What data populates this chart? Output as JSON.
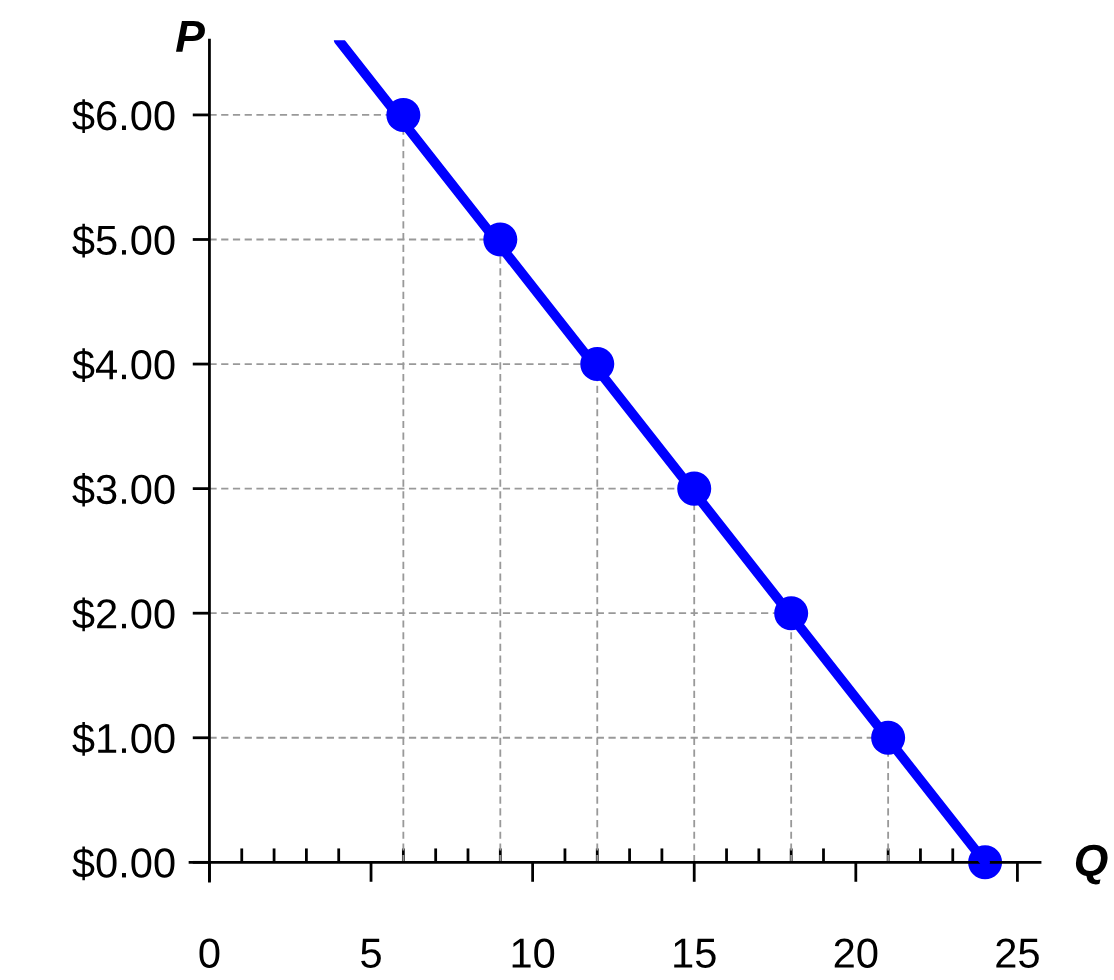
{
  "chart_data": {
    "type": "line",
    "xlabel": "Q",
    "ylabel": "P",
    "series": [
      {
        "color": "#0000ff",
        "x": [
          4,
          24
        ],
        "values": [
          6.6,
          0
        ],
        "marker": "none"
      },
      {
        "type": "scatter",
        "color": "#0000ff",
        "x": [
          6,
          9,
          12,
          15,
          18,
          21,
          24
        ],
        "values": [
          6,
          5,
          4,
          3,
          2,
          1,
          0
        ],
        "marker": "circle"
      }
    ],
    "xlim": [
      -0.6,
      25.7
    ],
    "ylim": [
      -0.15,
      6.6
    ],
    "xticks": [
      0,
      {
        "value": 1,
        "label": null
      },
      {
        "value": 2,
        "label": null
      },
      {
        "value": 3,
        "label": null
      },
      {
        "value": 4,
        "label": null
      },
      5,
      {
        "value": 6,
        "label": null
      },
      {
        "value": 7,
        "label": null
      },
      {
        "value": 8,
        "label": null
      },
      {
        "value": 9,
        "label": null
      },
      10,
      {
        "value": 11,
        "label": null
      },
      {
        "value": 12,
        "label": null
      },
      {
        "value": 13,
        "label": null
      },
      {
        "value": 14,
        "label": null
      },
      15,
      {
        "value": 16,
        "label": null
      },
      {
        "value": 17,
        "label": null
      },
      {
        "value": 18,
        "label": null
      },
      {
        "value": 19,
        "label": null
      },
      20,
      {
        "value": 21,
        "label": null
      },
      {
        "value": 22,
        "label": null
      },
      {
        "value": 23,
        "label": null
      },
      {
        "value": 24,
        "label": null
      },
      25
    ],
    "yticks": [
      {
        "value": 0,
        "label": "$0.00"
      },
      {
        "value": 1,
        "label": "$1.00"
      },
      {
        "value": 2,
        "label": "$2.00"
      },
      {
        "value": 3,
        "label": "$3.00"
      },
      {
        "value": 4,
        "label": "$4.00"
      },
      {
        "value": 5,
        "label": "$5.00"
      },
      {
        "value": 6,
        "label": "$6.00"
      }
    ],
    "ref_lines": [
      {
        "axis": "y",
        "value": 6,
        "color": "#999999",
        "line_style": "dashed"
      },
      {
        "axis": "y",
        "value": 5,
        "color": "#999999",
        "line_style": "dashed"
      },
      {
        "axis": "y",
        "value": 4,
        "color": "#999999",
        "line_style": "dashed"
      },
      {
        "axis": "y",
        "value": 3,
        "color": "#999999",
        "line_style": "dashed"
      },
      {
        "axis": "y",
        "value": 2,
        "color": "#999999",
        "line_style": "dashed"
      },
      {
        "axis": "y",
        "value": 1,
        "color": "#999999",
        "line_style": "dashed"
      },
      {
        "axis": "x",
        "value": 6,
        "color": "#999999",
        "line_style": "dashed"
      },
      {
        "axis": "x",
        "value": 9,
        "color": "#999999",
        "line_style": "dashed"
      },
      {
        "axis": "x",
        "value": 12,
        "color": "#999999",
        "line_style": "dashed"
      },
      {
        "axis": "x",
        "value": 15,
        "color": "#999999",
        "line_style": "dashed"
      },
      {
        "axis": "x",
        "value": 18,
        "color": "#999999",
        "line_style": "dashed"
      },
      {
        "axis": "x",
        "value": 21,
        "color": "#999999",
        "line_style": "dashed"
      }
    ],
    "grid": false,
    "legend": false
  }
}
